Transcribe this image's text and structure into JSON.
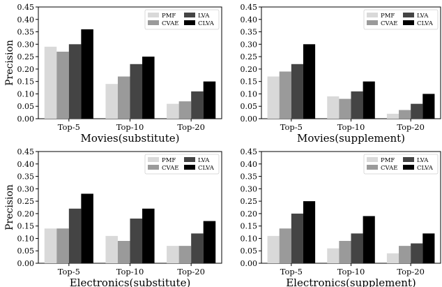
{
  "chart_data": [
    {
      "type": "bar",
      "xlabel": "Movies(substitute)",
      "ylabel": "Precision",
      "ylim": [
        0,
        0.45
      ],
      "yticks": [
        "0.00",
        "0.05",
        "0.10",
        "0.15",
        "0.20",
        "0.25",
        "0.30",
        "0.35",
        "0.40",
        "0.45"
      ],
      "categories": [
        "Top-5",
        "Top-10",
        "Top-20"
      ],
      "legend_position": "top-right",
      "series": [
        {
          "name": "PMF",
          "color": "#d9d9d9",
          "values": [
            0.29,
            0.14,
            0.06
          ]
        },
        {
          "name": "CVAE",
          "color": "#9a9a9a",
          "values": [
            0.27,
            0.17,
            0.07
          ]
        },
        {
          "name": "LVA",
          "color": "#444444",
          "values": [
            0.3,
            0.22,
            0.11
          ]
        },
        {
          "name": "CLVA",
          "color": "#000000",
          "values": [
            0.36,
            0.25,
            0.15
          ]
        }
      ]
    },
    {
      "type": "bar",
      "xlabel": "Movies(supplement)",
      "ylabel": "",
      "ylim": [
        0,
        0.45
      ],
      "yticks": [
        "0.00",
        "0.05",
        "0.10",
        "0.15",
        "0.20",
        "0.25",
        "0.30",
        "0.35",
        "0.40",
        "0.45"
      ],
      "categories": [
        "Top-5",
        "Top-10",
        "Top-20"
      ],
      "legend_position": "top-right",
      "series": [
        {
          "name": "PMF",
          "color": "#d9d9d9",
          "values": [
            0.17,
            0.09,
            0.02
          ]
        },
        {
          "name": "CVAE",
          "color": "#9a9a9a",
          "values": [
            0.19,
            0.08,
            0.035
          ]
        },
        {
          "name": "LVA",
          "color": "#444444",
          "values": [
            0.22,
            0.11,
            0.06
          ]
        },
        {
          "name": "CLVA",
          "color": "#000000",
          "values": [
            0.3,
            0.15,
            0.1
          ]
        }
      ]
    },
    {
      "type": "bar",
      "xlabel": "Electronics(substitute)",
      "ylabel": "Precision",
      "ylim": [
        0,
        0.45
      ],
      "yticks": [
        "0.00",
        "0.05",
        "0.10",
        "0.15",
        "0.20",
        "0.25",
        "0.30",
        "0.35",
        "0.40",
        "0.45"
      ],
      "categories": [
        "Top-5",
        "Top-10",
        "Top-20"
      ],
      "legend_position": "top-right",
      "series": [
        {
          "name": "PMF",
          "color": "#d9d9d9",
          "values": [
            0.14,
            0.11,
            0.07
          ]
        },
        {
          "name": "CVAE",
          "color": "#9a9a9a",
          "values": [
            0.14,
            0.09,
            0.07
          ]
        },
        {
          "name": "LVA",
          "color": "#444444",
          "values": [
            0.22,
            0.18,
            0.12
          ]
        },
        {
          "name": "CLVA",
          "color": "#000000",
          "values": [
            0.28,
            0.22,
            0.17
          ]
        }
      ]
    },
    {
      "type": "bar",
      "xlabel": "Electronics(supplement)",
      "ylabel": "",
      "ylim": [
        0,
        0.45
      ],
      "yticks": [
        "0.00",
        "0.05",
        "0.10",
        "0.15",
        "0.20",
        "0.25",
        "0.30",
        "0.35",
        "0.40",
        "0.45"
      ],
      "categories": [
        "Top-5",
        "Top-10",
        "Top-20"
      ],
      "legend_position": "top-right",
      "series": [
        {
          "name": "PMF",
          "color": "#d9d9d9",
          "values": [
            0.11,
            0.06,
            0.04
          ]
        },
        {
          "name": "CVAE",
          "color": "#9a9a9a",
          "values": [
            0.14,
            0.09,
            0.07
          ]
        },
        {
          "name": "LVA",
          "color": "#444444",
          "values": [
            0.2,
            0.12,
            0.08
          ]
        },
        {
          "name": "CLVA",
          "color": "#000000",
          "values": [
            0.25,
            0.19,
            0.12
          ]
        }
      ]
    }
  ]
}
